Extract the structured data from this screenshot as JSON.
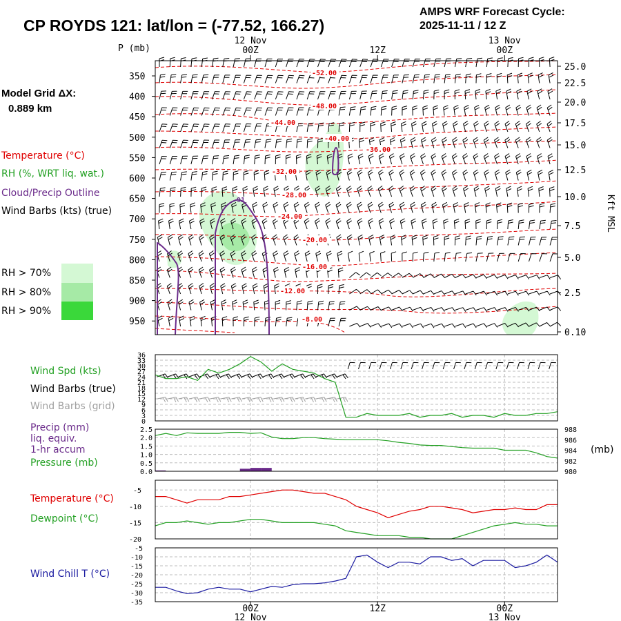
{
  "header": {
    "title": "CP ROYDS 121:  lat/lon = (-77.52, 166.27)",
    "cycle_label": "AMPS WRF Forecast Cycle:",
    "cycle_value": "2025-11-11 / 12  Z",
    "grid_label": "Model Grid ΔX:",
    "grid_value": "0.889 km"
  },
  "colors": {
    "temp": "#e00000",
    "rh": "#22a022",
    "cloud": "#6a2a8a",
    "wind_chill": "#1a1aa0",
    "gray": "#a0a0a0",
    "rh70": "#d4f8d4",
    "rh80": "#a6eaa6",
    "rh90": "#3ad83a"
  },
  "legend": {
    "temperature": "Temperature (°C)",
    "rh": "RH (%, WRT liq. wat.)",
    "cloud": "Cloud/Precip Outline",
    "wind_barbs": "Wind Barbs (kts) (true)",
    "rh70": "RH > 70%",
    "rh80": "RH > 80%",
    "rh90": "RH > 90%"
  },
  "time_axis": {
    "top_labels": [
      {
        "date": "12 Nov",
        "hour": "00Z",
        "t": 9
      },
      {
        "date": "",
        "hour": "12Z",
        "t": 21
      },
      {
        "date": "13 Nov",
        "hour": "00Z",
        "t": 33
      }
    ],
    "bottom_labels": [
      {
        "hour": "00Z",
        "date": "12 Nov",
        "t": 9
      },
      {
        "hour": "12Z",
        "date": "",
        "t": 21
      },
      {
        "hour": "00Z",
        "date": "13 Nov",
        "t": 33
      }
    ]
  },
  "chart_data": [
    {
      "type": "contour",
      "id": "cross-section",
      "ylabel_left": "P (mb)",
      "ylabel_right": "Kft MSL",
      "pressure_ticks": [
        "350",
        "400",
        "450",
        "500",
        "550",
        "600",
        "650",
        "700",
        "750",
        "800",
        "850",
        "900",
        "950"
      ],
      "height_ticks": [
        "25.0",
        "22.5",
        "20.0",
        "17.5",
        "15.0",
        "12.5",
        "10.0",
        "7.5",
        "5.0",
        "2.5",
        "0.10"
      ],
      "temperature_contours": [
        "-52.00",
        "-48.00",
        "-44.00",
        "-40.00",
        "-36.00",
        "-32.00",
        "-28.00",
        "-24.00",
        "-20.00",
        "-16.00",
        "-12.00",
        "-8.00"
      ],
      "cloud_label": "91"
    },
    {
      "type": "line",
      "id": "wind",
      "labels": [
        "Wind Spd (kts)",
        "Wind Barbs (true)",
        "Wind Barbs (grid)"
      ],
      "ylim": [
        0,
        36
      ],
      "yticks": [
        "36",
        "33",
        "30",
        "27",
        "24",
        "21",
        "18",
        "15",
        "12",
        "9",
        "6",
        "3",
        "0"
      ],
      "x": [
        0,
        1,
        2,
        3,
        4,
        5,
        6,
        7,
        8,
        9,
        10,
        11,
        12,
        13,
        14,
        15,
        16,
        17,
        18,
        19,
        20,
        21,
        22,
        23,
        24,
        25,
        26,
        27,
        28,
        29,
        30,
        31,
        32,
        33,
        34,
        35,
        36,
        37,
        38
      ],
      "series": [
        {
          "name": "Wind Spd (kts)",
          "values": [
            25,
            23,
            23,
            24,
            22,
            28,
            26,
            28,
            31,
            35,
            32,
            27,
            31,
            28,
            27,
            26,
            23,
            21,
            2,
            2,
            4,
            3,
            3,
            3,
            4,
            2,
            3,
            3,
            4,
            2,
            3,
            3,
            2,
            4,
            3,
            3,
            4,
            4,
            5
          ]
        }
      ]
    },
    {
      "type": "bar+line",
      "id": "precip-pressure",
      "labels": [
        "Precip (mm)",
        "liq. equiv.",
        "1-hr accum",
        "Pressure (mb)"
      ],
      "yticks_left": [
        "2.5",
        "2.0",
        "1.5",
        "1.0",
        "0.5",
        "0.0"
      ],
      "yticks_right": [
        "988",
        "986",
        "984",
        "982",
        "980"
      ],
      "ylim_left": [
        0,
        2.5
      ],
      "ylim_right": [
        980,
        988
      ],
      "right_unit": "(mb)",
      "x": [
        0,
        1,
        2,
        3,
        4,
        5,
        6,
        7,
        8,
        9,
        10,
        11,
        12,
        13,
        14,
        15,
        16,
        17,
        18,
        19,
        20,
        21,
        22,
        23,
        24,
        25,
        26,
        27,
        28,
        29,
        30,
        31,
        32,
        33,
        34,
        35,
        36,
        37,
        38
      ],
      "series": [
        {
          "name": "Pressure (mb)",
          "values": [
            986.8,
            987.2,
            986.8,
            987.3,
            987.2,
            987.2,
            987.2,
            987.4,
            987.4,
            987.2,
            987.3,
            986.5,
            986.2,
            986.2,
            986.4,
            986.4,
            986.2,
            986.1,
            986.0,
            986.0,
            986.0,
            986.0,
            985.8,
            985.5,
            985.3,
            985.0,
            984.9,
            984.9,
            984.7,
            984.5,
            984.4,
            984.4,
            984.4,
            984.0,
            984.0,
            984.0,
            983.5,
            982.8,
            982.5
          ]
        },
        {
          "name": "Precip (mm)",
          "values": [
            0.05,
            0,
            0,
            0,
            0,
            0,
            0,
            0,
            0.15,
            0.2,
            0.2,
            0,
            0,
            0,
            0,
            0,
            0,
            0,
            0,
            0,
            0,
            0,
            0,
            0,
            0,
            0,
            0,
            0,
            0,
            0,
            0,
            0,
            0,
            0,
            0,
            0,
            0,
            0,
            0
          ]
        }
      ]
    },
    {
      "type": "line",
      "id": "temperature-dewpoint",
      "labels": [
        "Temperature (°C)",
        "Dewpoint (°C)"
      ],
      "ylim": [
        -20,
        -2
      ],
      "yticks": [
        "-5",
        "-10",
        "-15",
        "-20"
      ],
      "x": [
        0,
        1,
        2,
        3,
        4,
        5,
        6,
        7,
        8,
        9,
        10,
        11,
        12,
        13,
        14,
        15,
        16,
        17,
        18,
        19,
        20,
        21,
        22,
        23,
        24,
        25,
        26,
        27,
        28,
        29,
        30,
        31,
        32,
        33,
        34,
        35,
        36,
        37,
        38
      ],
      "series": [
        {
          "name": "Temperature (°C)",
          "values": [
            -7,
            -7,
            -8,
            -9,
            -8,
            -8,
            -8,
            -7,
            -7,
            -6.5,
            -6,
            -5.5,
            -5,
            -5,
            -5.5,
            -6,
            -6,
            -7,
            -8,
            -10,
            -11,
            -12,
            -13.5,
            -12.5,
            -11.5,
            -11,
            -10,
            -10,
            -10.5,
            -11,
            -12,
            -11.5,
            -11,
            -11,
            -10.5,
            -11,
            -11,
            -9.5,
            -9.5
          ]
        },
        {
          "name": "Dewpoint (°C)",
          "values": [
            -16,
            -15,
            -15,
            -14.5,
            -15,
            -15.5,
            -15,
            -15,
            -14.5,
            -14,
            -14,
            -14.5,
            -15,
            -15,
            -15,
            -15,
            -15.5,
            -16,
            -17.5,
            -18,
            -18.5,
            -19,
            -19,
            -19,
            -19.5,
            -19.5,
            -20,
            -20,
            -20,
            -19,
            -18,
            -17,
            -16,
            -15.5,
            -15,
            -15.5,
            -15.5,
            -16,
            -16
          ]
        }
      ]
    },
    {
      "type": "line",
      "id": "wind-chill",
      "labels": [
        "Wind Chill T (°C)"
      ],
      "ylim": [
        -35,
        -5
      ],
      "yticks": [
        "-5",
        "-10",
        "-15",
        "-20",
        "-25",
        "-30",
        "-35"
      ],
      "x": [
        0,
        1,
        2,
        3,
        4,
        5,
        6,
        7,
        8,
        9,
        10,
        11,
        12,
        13,
        14,
        15,
        16,
        17,
        18,
        19,
        20,
        21,
        22,
        23,
        24,
        25,
        26,
        27,
        28,
        29,
        30,
        31,
        32,
        33,
        34,
        35,
        36,
        37,
        38
      ],
      "series": [
        {
          "name": "Wind Chill T (°C)",
          "values": [
            -27,
            -27,
            -29,
            -30.5,
            -30,
            -28,
            -27,
            -28,
            -28,
            -29.5,
            -28,
            -26.5,
            -27,
            -25.5,
            -25,
            -25,
            -24.5,
            -23.5,
            -22,
            -10,
            -9,
            -13,
            -16,
            -13,
            -13,
            -14,
            -10,
            -10,
            -12,
            -11,
            -15,
            -12,
            -12,
            -12,
            -16,
            -15,
            -13,
            -9,
            -13
          ]
        }
      ]
    }
  ]
}
